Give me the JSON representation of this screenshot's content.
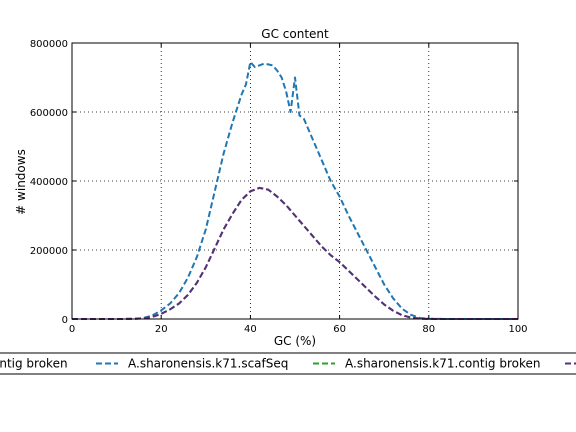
{
  "chart_data": {
    "type": "line",
    "title": "GC content",
    "xlabel": "GC (%)",
    "ylabel": "# windows",
    "xlim": [
      0,
      100
    ],
    "ylim": [
      0,
      800000
    ],
    "xticks": [
      0,
      20,
      40,
      60,
      80,
      100
    ],
    "yticks": [
      0,
      200000,
      400000,
      600000,
      800000
    ],
    "xtick_labels": [
      "0",
      "20",
      "40",
      "60",
      "80",
      "100"
    ],
    "ytick_labels": [
      "0",
      "200000",
      "400000",
      "600000",
      "800000"
    ],
    "grid": true,
    "legend_placement": "below plot",
    "series": [
      {
        "name": "A.sharonensis.k71.scafSeq",
        "color": "#1f77b4",
        "line_style": "dashed",
        "x": [
          0,
          5,
          10,
          14,
          16,
          18,
          20,
          22,
          24,
          26,
          28,
          30,
          32,
          34,
          36,
          38,
          39,
          40,
          41,
          42,
          43,
          44,
          45,
          46,
          47,
          48,
          49,
          50,
          51,
          52,
          54,
          56,
          58,
          60,
          62,
          64,
          66,
          68,
          70,
          72,
          74,
          76,
          78,
          80,
          85,
          90,
          100
        ],
        "y": [
          0,
          0,
          0,
          500,
          3000,
          10000,
          25000,
          45000,
          75000,
          120000,
          180000,
          260000,
          370000,
          480000,
          570000,
          650000,
          680000,
          745000,
          730000,
          735000,
          740000,
          738000,
          735000,
          720000,
          700000,
          660000,
          600000,
          700000,
          590000,
          580000,
          520000,
          460000,
          400000,
          355000,
          300000,
          250000,
          200000,
          150000,
          100000,
          60000,
          30000,
          12000,
          3000,
          500,
          0,
          0,
          0
        ]
      },
      {
        "name": "A.sharonensis.k71.contig broken",
        "color": "#2ca02c",
        "line_style": "dashed",
        "x": [
          0,
          5,
          10,
          14,
          16,
          18,
          20,
          22,
          24,
          26,
          28,
          30,
          32,
          34,
          36,
          38,
          40,
          42,
          44,
          46,
          48,
          50,
          52,
          54,
          56,
          58,
          60,
          62,
          64,
          66,
          68,
          70,
          72,
          74,
          76,
          78,
          80,
          85,
          90,
          100
        ],
        "y": [
          0,
          0,
          0,
          500,
          2000,
          6000,
          15000,
          28000,
          45000,
          70000,
          105000,
          150000,
          205000,
          260000,
          305000,
          345000,
          370000,
          380000,
          375000,
          355000,
          330000,
          300000,
          270000,
          240000,
          210000,
          185000,
          165000,
          140000,
          115000,
          90000,
          65000,
          42000,
          24000,
          11000,
          4000,
          1000,
          200,
          0,
          0,
          0
        ]
      },
      {
        "name": "",
        "color": "#5b2d7d",
        "line_style": "dashed",
        "x": [
          0,
          5,
          10,
          14,
          16,
          18,
          20,
          22,
          24,
          26,
          28,
          30,
          32,
          34,
          36,
          38,
          40,
          42,
          44,
          46,
          48,
          50,
          52,
          54,
          56,
          58,
          60,
          62,
          64,
          66,
          68,
          70,
          72,
          74,
          76,
          78,
          80,
          85,
          90,
          100
        ],
        "y": [
          0,
          0,
          0,
          500,
          2000,
          6000,
          15000,
          28000,
          45000,
          70000,
          105000,
          150000,
          205000,
          260000,
          305000,
          345000,
          370000,
          380000,
          375000,
          355000,
          330000,
          300000,
          270000,
          240000,
          210000,
          185000,
          165000,
          140000,
          115000,
          90000,
          65000,
          42000,
          24000,
          11000,
          4000,
          1000,
          200,
          0,
          0,
          0
        ]
      }
    ],
    "legend": {
      "entries": [
        {
          "label": "ontig broken",
          "color": "#5b2d7d"
        },
        {
          "label": "A.sharonensis.k71.scafSeq",
          "color": "#1f77b4"
        },
        {
          "label": "A.sharonensis.k71.contig broken",
          "color": "#2ca02c"
        },
        {
          "label": "",
          "color": "#5b2d7d"
        }
      ]
    }
  }
}
